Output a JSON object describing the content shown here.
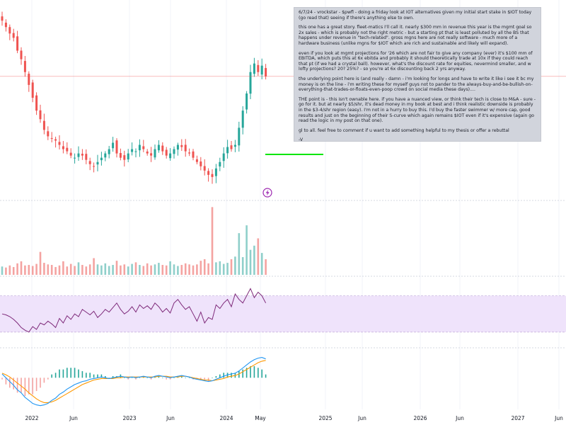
{
  "note": {
    "paragraphs": [
      "6/7/24 - vrockstar - $pwfl - doing a friday look at IOT alternatives given my initial start stake in $IOT today (go read that) seeing if there's anything else to own.",
      "this one has a great story. fleet-matics I'll call it. nearly $300 mm in revenue this year is the mgmt goal so 2x sales - which is probably not the right metric - but a starting pt that is least polluted by all the BS that happens under revenue in \"tech-related\". gross mgns here are not really software - much more of a hardware business (unlike mgns for $IOT which are rich and sustainable and likely will expand).",
      "even if you look at mgmt projections for '26 which are not fair to give any company (ever) it's $100 mm of EBITDA, which puts this at 6x ebitda and probably it should theoretically trade at 10x if they could reach that pt (if we had a crystal ball). however, what's the discount rate for equities, nevermind smaller, and w lofty projections? 20? 25%? - so you're at 6x discounting back 2 yrs anyway.",
      "the underlying point here is (and really - damn - i'm looking for longs and have to write it like i see it bc my money is on the line - i'm writing these for myself guys not to pander to the always-buy-and-be-bullish-on-everything-that-trades-or-floats-even-poop crowd on social media these days)....",
      "THE point is - this isn't ownable here. if you have a nuanced view, or think their tech is close to M&A - sure - go for it. but at nearly $5/shr, it's dead money in my book at best and i think realistic downside is probably in the $3-4/shr region (easy). I'm not in a hurry to buy this. I'd buy the faster swimmer w/ more cap, good results and just on the beginning of their S-curve which again remains $IOT even if it's expensive (again go read the logic in my post on that one).",
      "gl to all. feel free to comment if u want to add something helpful to my thesis or offer a rebuttal",
      "-V"
    ]
  },
  "colors": {
    "up": "#26a69a",
    "down": "#ef5350",
    "volume_up": "#8fcfca",
    "volume_down": "#f4a3a1",
    "rsi_line": "#7e2a7a",
    "rsi_band": "#efe3fb",
    "macd_line": "#2196f3",
    "signal_line": "#ff9800",
    "target_line": "#00e600",
    "price_line": "#ef5350",
    "note_bg": "#d1d4dc",
    "axis_text": "#131722"
  },
  "chart_data": {
    "type": "candlestick",
    "x_axis_ticks": [
      "2022",
      "Jun",
      "2023",
      "Jun",
      "2024",
      "May",
      "2025",
      "Jun",
      "2026",
      "Jun",
      "2027",
      "Jun"
    ],
    "price": {
      "close_path": [
        6.1,
        5.95,
        5.8,
        5.7,
        5.4,
        5.2,
        4.9,
        4.6,
        4.3,
        4.0,
        3.8,
        3.55,
        3.4,
        3.35,
        3.3,
        3.2,
        3.1,
        3.05,
        2.95,
        2.9,
        3.0,
        2.95,
        2.85,
        2.75,
        2.7,
        2.8,
        2.9,
        3.0,
        3.1,
        3.25,
        3.0,
        2.9,
        2.85,
        3.0,
        3.1,
        3.05,
        3.2,
        3.1,
        3.0,
        2.95,
        3.1,
        3.2,
        3.05,
        2.95,
        3.0,
        3.1,
        3.2,
        3.15,
        3.05,
        3.0,
        2.9,
        2.8,
        2.7,
        2.6,
        2.5,
        2.45,
        2.65,
        2.8,
        3.0,
        3.15,
        3.1,
        3.2,
        3.6,
        4.0,
        4.4,
        4.9,
        5.1,
        4.9,
        5.05,
        4.8
      ],
      "y_range": [
        2.2,
        6.5
      ]
    },
    "volume": {
      "values": [
        1.6,
        1.4,
        1.8,
        1.5,
        2.2,
        2.6,
        1.8,
        1.9,
        1.7,
        2.1,
        4.4,
        2.3,
        2.0,
        1.9,
        1.5,
        1.8,
        2.6,
        1.6,
        2.1,
        1.7,
        2.4,
        1.9,
        1.6,
        2.0,
        3.2,
        2.0,
        1.8,
        2.2,
        1.7,
        1.9,
        2.7,
        1.8,
        2.0,
        1.6,
        2.1,
        2.4,
        1.9,
        1.7,
        2.2,
        1.8,
        2.0,
        2.3,
        1.9,
        1.8,
        2.6,
        2.0,
        1.7,
        1.9,
        2.2,
        2.0,
        1.8,
        2.0,
        2.7,
        3.0,
        2.2,
        13.0,
        2.4,
        2.6,
        2.1,
        2.3,
        3.0,
        3.5,
        8.0,
        3.4,
        9.5,
        4.8,
        5.6,
        7.0,
        4.2,
        3.0
      ],
      "y_range": [
        0,
        14
      ]
    },
    "rsi": {
      "values": [
        50,
        49,
        47,
        44,
        40,
        35,
        32,
        30,
        36,
        33,
        40,
        38,
        42,
        39,
        35,
        45,
        40,
        48,
        44,
        50,
        47,
        55,
        52,
        49,
        53,
        46,
        50,
        55,
        52,
        57,
        62,
        55,
        50,
        53,
        58,
        52,
        60,
        56,
        59,
        55,
        62,
        58,
        52,
        56,
        51,
        62,
        66,
        60,
        55,
        58,
        50,
        42,
        52,
        40,
        46,
        44,
        60,
        56,
        62,
        66,
        58,
        72,
        66,
        62,
        70,
        78,
        68,
        74,
        70,
        62
      ],
      "band": [
        30,
        70
      ],
      "y_range": [
        15,
        90
      ]
    },
    "macd": {
      "macd": [
        0.05,
        0.0,
        -0.05,
        -0.1,
        -0.16,
        -0.2,
        -0.26,
        -0.3,
        -0.34,
        -0.36,
        -0.37,
        -0.36,
        -0.34,
        -0.3,
        -0.27,
        -0.22,
        -0.19,
        -0.15,
        -0.12,
        -0.09,
        -0.07,
        -0.05,
        -0.04,
        -0.02,
        -0.01,
        0.0,
        0.01,
        0.0,
        -0.01,
        0.0,
        0.01,
        0.02,
        0.01,
        0.0,
        0.01,
        0.0,
        0.01,
        0.02,
        0.01,
        0.0,
        0.02,
        0.03,
        0.02,
        0.01,
        0.0,
        0.01,
        0.02,
        0.03,
        0.02,
        0.01,
        -0.01,
        -0.02,
        -0.03,
        -0.04,
        -0.05,
        -0.04,
        -0.02,
        0.0,
        0.02,
        0.04,
        0.05,
        0.06,
        0.09,
        0.13,
        0.17,
        0.21,
        0.24,
        0.26,
        0.27,
        0.25
      ],
      "signal": [
        0.06,
        0.04,
        0.01,
        -0.03,
        -0.07,
        -0.11,
        -0.15,
        -0.2,
        -0.24,
        -0.28,
        -0.31,
        -0.33,
        -0.33,
        -0.32,
        -0.3,
        -0.27,
        -0.24,
        -0.21,
        -0.18,
        -0.15,
        -0.12,
        -0.09,
        -0.07,
        -0.05,
        -0.03,
        -0.02,
        -0.01,
        -0.01,
        -0.01,
        -0.01,
        0.0,
        0.0,
        0.01,
        0.01,
        0.01,
        0.01,
        0.01,
        0.01,
        0.01,
        0.01,
        0.01,
        0.02,
        0.02,
        0.02,
        0.01,
        0.01,
        0.01,
        0.02,
        0.02,
        0.01,
        0.0,
        -0.01,
        -0.02,
        -0.03,
        -0.03,
        -0.04,
        -0.03,
        -0.02,
        -0.01,
        0.01,
        0.02,
        0.03,
        0.05,
        0.08,
        0.11,
        0.14,
        0.17,
        0.2,
        0.22,
        0.23
      ],
      "y_range": [
        -0.42,
        0.36
      ]
    }
  }
}
